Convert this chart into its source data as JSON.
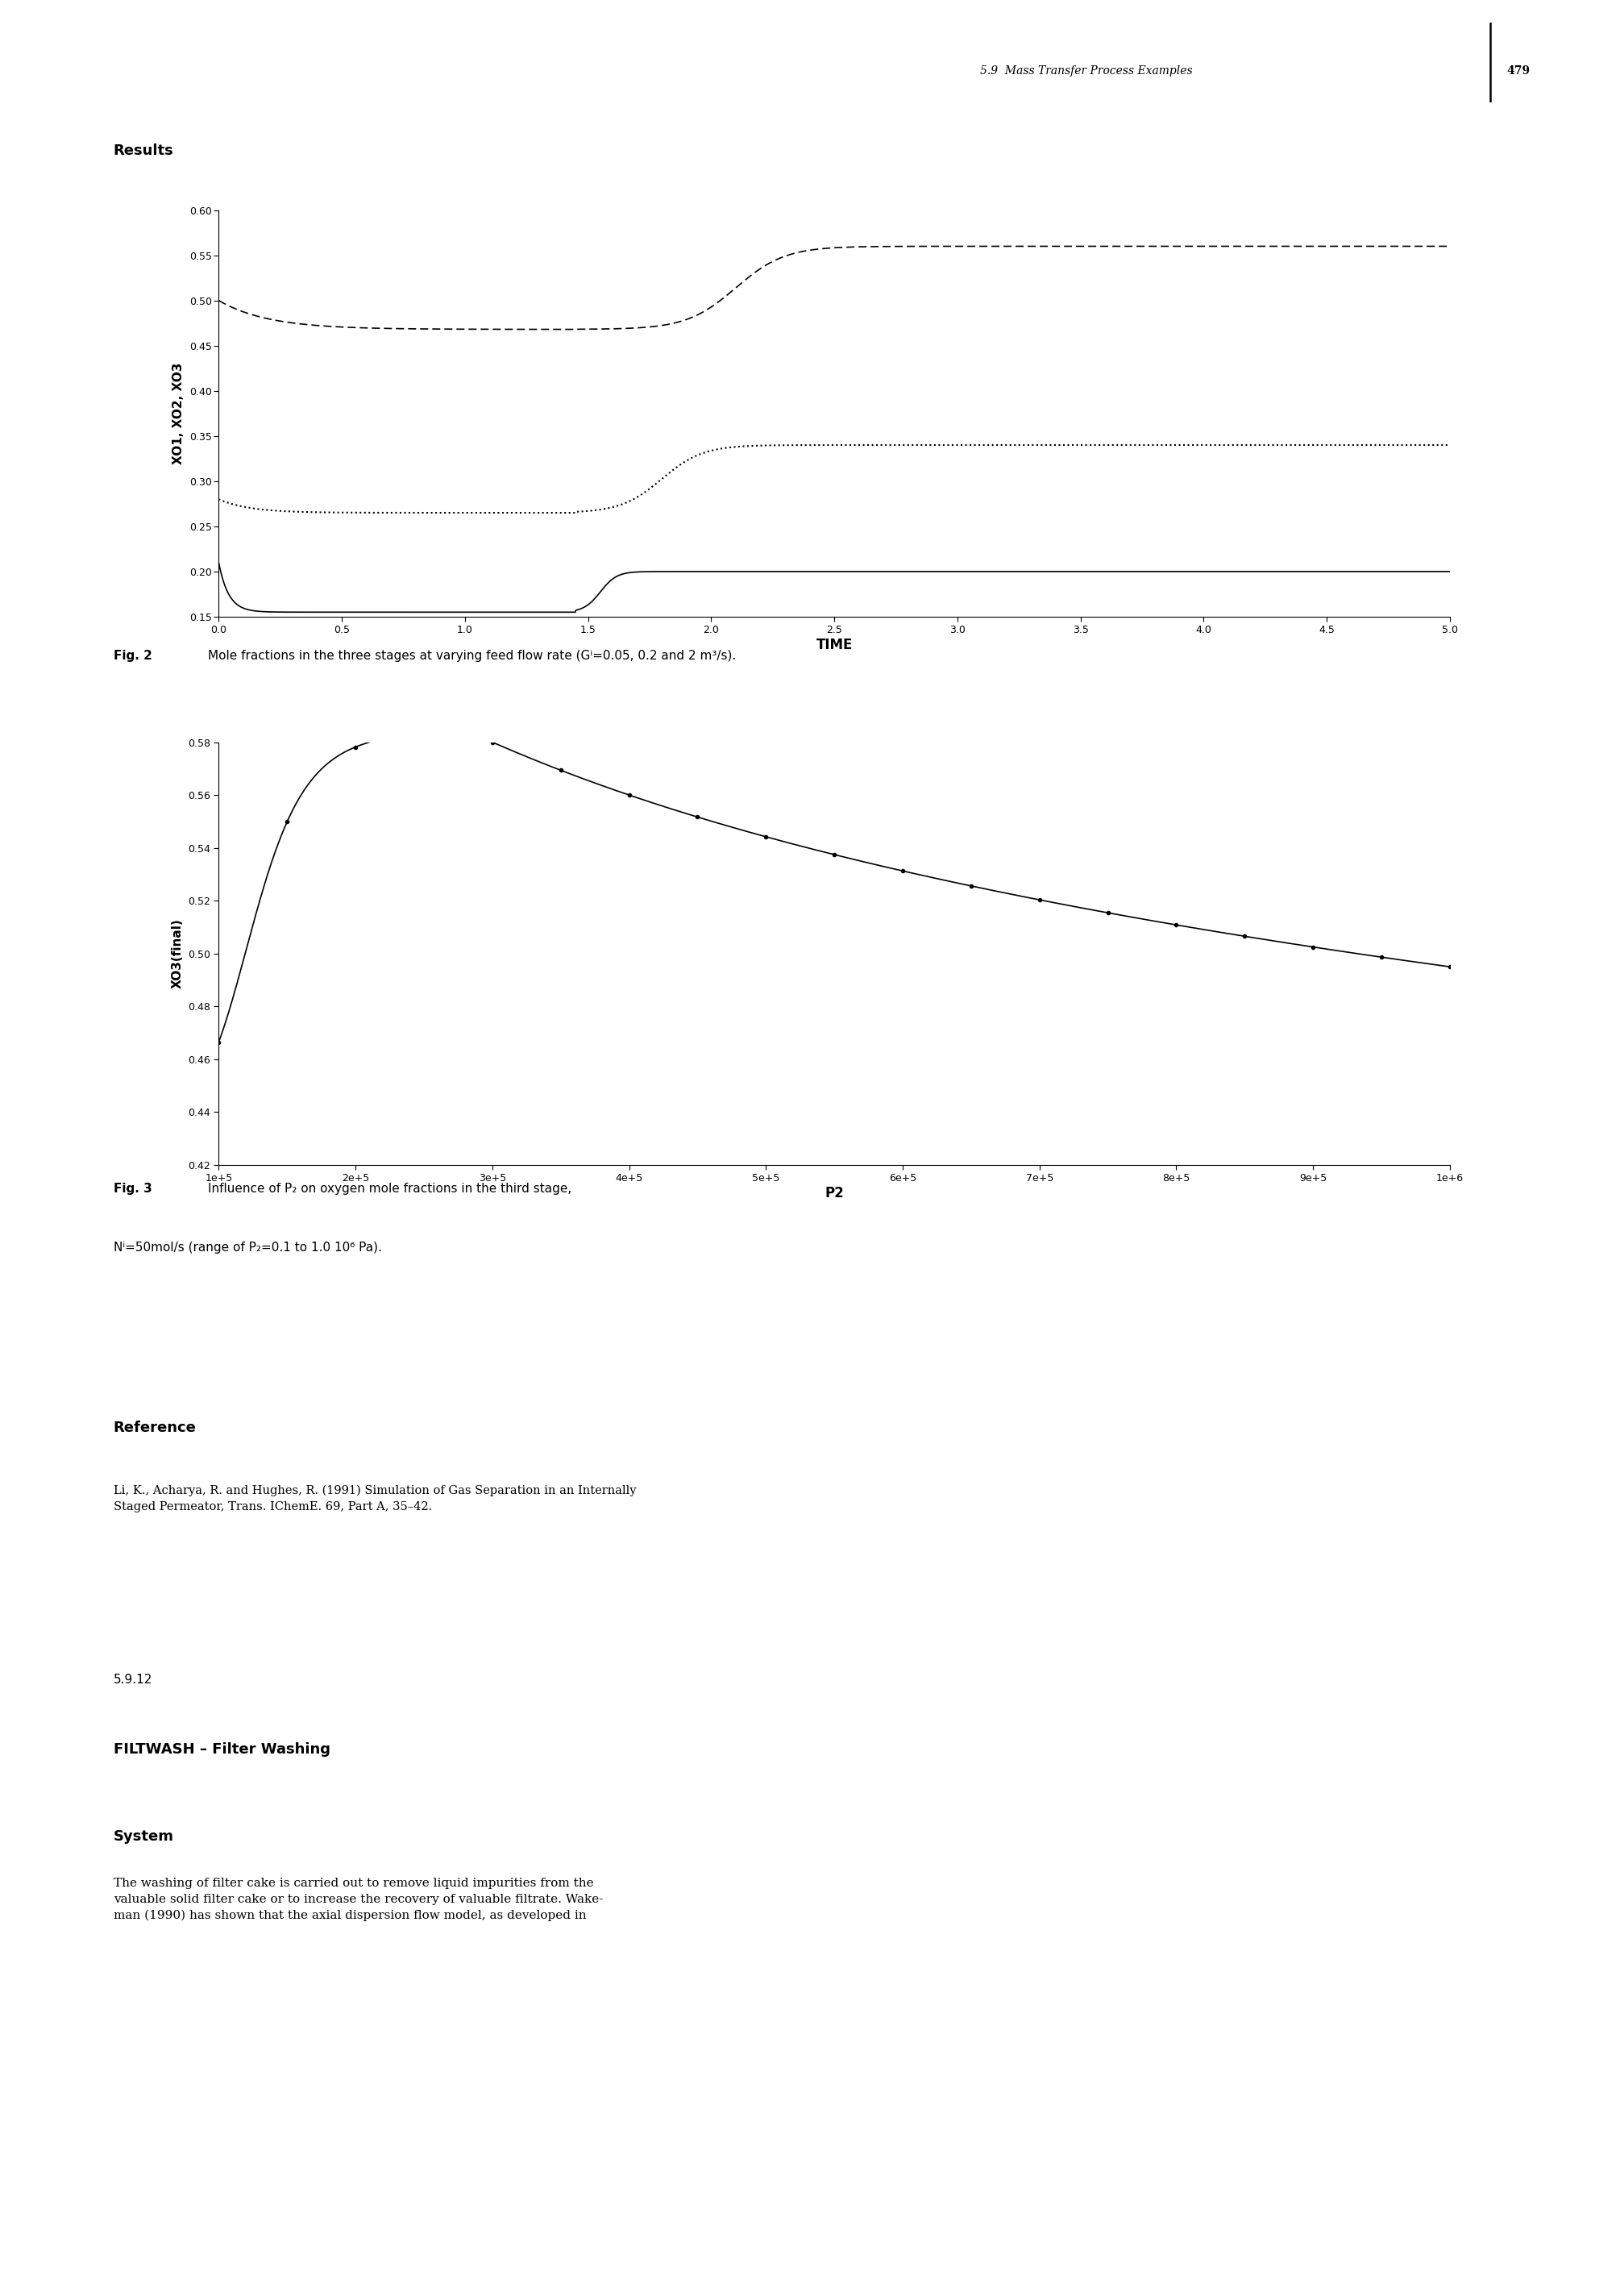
{
  "page_header": "5.9  Mass Transfer Process Examples",
  "page_number": "479",
  "section_label": "Results",
  "fig2": {
    "ylabel": "XO1, XO2, XO3",
    "xlabel": "TIME",
    "ylim": [
      0.15,
      0.6
    ],
    "xlim": [
      0,
      5
    ],
    "yticks": [
      0.15,
      0.2,
      0.25,
      0.3,
      0.35,
      0.4,
      0.45,
      0.5,
      0.55,
      0.6
    ],
    "xticks": [
      0,
      0.5,
      1,
      1.5,
      2,
      2.5,
      3,
      3.5,
      4,
      4.5,
      5
    ],
    "caption_bold": "Fig. 2",
    "caption_rest": "  Mole fractions in the three stages at varying feed flow rate (Gⁱ=0.05, 0.2 and 2 m³/s)."
  },
  "fig3": {
    "ylabel": "XO3(final)",
    "xlabel": "P2",
    "ylim": [
      0.42,
      0.58
    ],
    "xlim": [
      100000,
      1000000
    ],
    "yticks": [
      0.42,
      0.44,
      0.46,
      0.48,
      0.5,
      0.52,
      0.54,
      0.56,
      0.58
    ],
    "xtick_vals": [
      100000,
      200000,
      300000,
      400000,
      500000,
      600000,
      700000,
      800000,
      900000,
      1000000
    ],
    "xtick_labels": [
      "1e+5",
      "2e+5",
      "3e+5",
      "4e+5",
      "5e+5",
      "6e+5",
      "7e+5",
      "8e+5",
      "9e+5",
      "1e+6"
    ],
    "caption_bold": "Fig. 3",
    "caption_line1": "  Influence of P₂ on oxygen mole fractions in the third stage,",
    "caption_line2": "Nⁱ=50mol/s (range of P₂=0.1 to 1.0 10⁶ Pa)."
  },
  "reference_title": "Reference",
  "reference_text": "Li, K., Acharya, R. and Hughes, R. (1991) Simulation of Gas Separation in an Internally\nStaged Permeator, Trans. IChemE. 69, Part A, 35–42.",
  "section_number": "5.9.12",
  "section_title": "FILTWASH – Filter Washing",
  "subsection": "System",
  "body_text": "The washing of filter cake is carried out to remove liquid impurities from the\nvaluable solid filter cake or to increase the recovery of valuable filtrate. Wake-\nman (1990) has shown that the axial dispersion flow model, as developed in",
  "background_color": "#ffffff",
  "text_color": "#000000"
}
